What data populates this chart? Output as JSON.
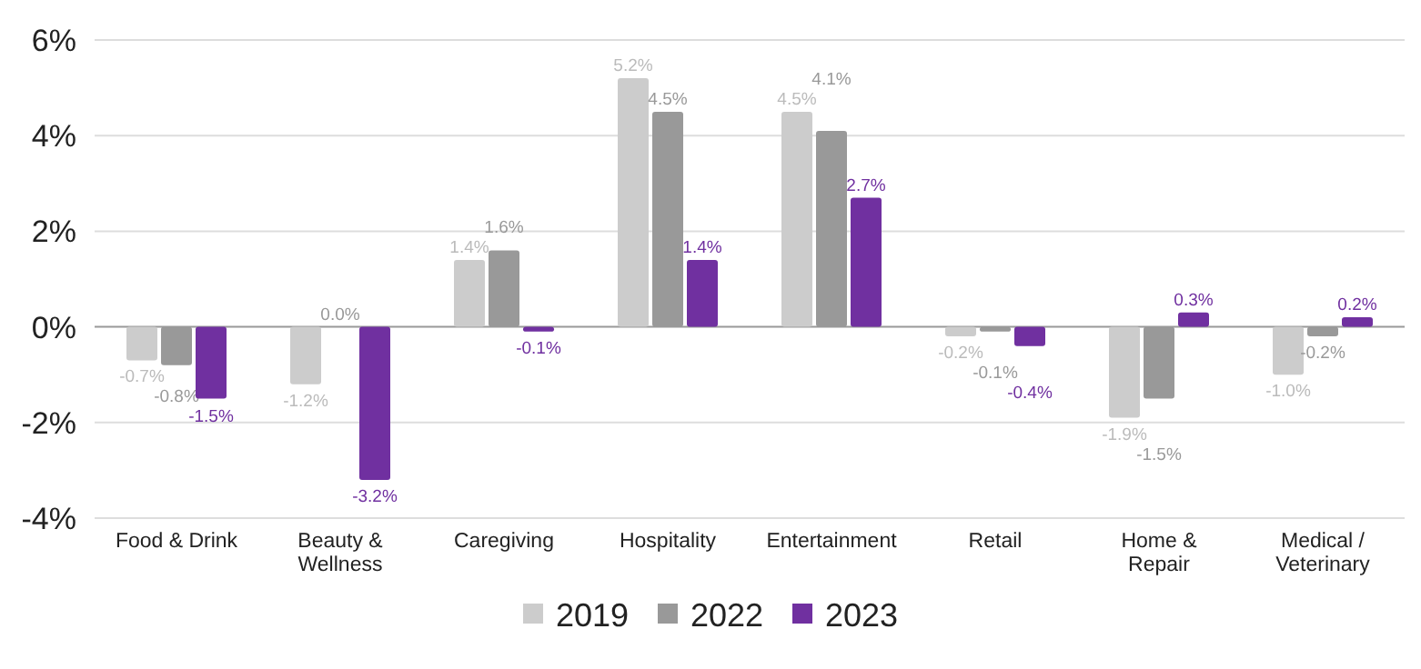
{
  "chart_data": {
    "type": "bar",
    "categories": [
      "Food & Drink",
      "Beauty & Wellness",
      "Caregiving",
      "Hospitality",
      "Entertainment",
      "Retail",
      "Home & Repair",
      "Medical / Veterinary"
    ],
    "series": [
      {
        "name": "2019",
        "color": "#cccccc",
        "values": [
          -0.7,
          -1.2,
          1.4,
          5.2,
          4.5,
          -0.2,
          -1.9,
          -1.0
        ],
        "value_labels": [
          "-0.7%",
          "-1.2%",
          "1.4%",
          "5.2%",
          "4.5%",
          "-0.2%",
          "-1.9%",
          "-1.0%"
        ]
      },
      {
        "name": "2022",
        "color": "#999999",
        "values": [
          -0.8,
          0.0,
          1.6,
          4.5,
          4.1,
          -0.1,
          -1.5,
          -0.2
        ],
        "value_labels": [
          "-0.8%",
          "0.0%",
          "1.6%",
          "4.5%",
          "4.1%",
          "-0.1%",
          "-1.5%",
          "-0.2%"
        ]
      },
      {
        "name": "2023",
        "color": "#7030a0",
        "values": [
          -1.5,
          -3.2,
          -0.1,
          1.4,
          2.7,
          -0.4,
          0.3,
          0.2
        ],
        "value_labels": [
          "-1.5%",
          "-3.2%",
          "-0.1%",
          "1.4%",
          "2.7%",
          "-0.4%",
          "0.3%",
          "0.2%"
        ]
      }
    ],
    "ylim": [
      -4,
      6
    ],
    "yticks": [
      {
        "value": -4,
        "label": "-4%"
      },
      {
        "value": -2,
        "label": "-2%"
      },
      {
        "value": 0,
        "label": "0%"
      },
      {
        "value": 2,
        "label": "2%"
      },
      {
        "value": 4,
        "label": "4%"
      },
      {
        "value": 6,
        "label": "6%"
      }
    ],
    "grid": "y",
    "legend": "bottom"
  }
}
